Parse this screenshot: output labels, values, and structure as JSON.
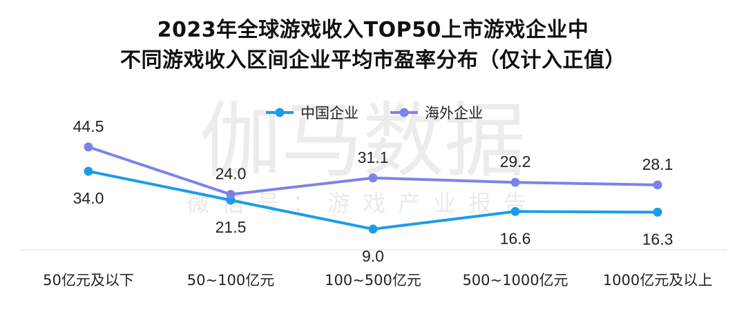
{
  "title_line1": "2023年全球游戏收入TOP50上市游戏企业中",
  "title_line2": "不同游戏收入区间企业平均市盈率分布（仅计入正值）",
  "watermark": {
    "main": "伽马数据",
    "sub": "微信号：游戏产业报告"
  },
  "chart_data": {
    "type": "line",
    "categories": [
      "50亿元及以下",
      "50~100亿元",
      "100~500亿元",
      "500~1000亿元",
      "1000亿元及以上"
    ],
    "series": [
      {
        "name": "中国企业",
        "color": "#1a9de8",
        "values": [
          34.0,
          21.5,
          9.0,
          16.6,
          16.3
        ],
        "label_position": "below"
      },
      {
        "name": "海外企业",
        "color": "#7b83ea",
        "values": [
          44.5,
          24.0,
          31.1,
          29.2,
          28.1
        ],
        "label_position": "above"
      }
    ],
    "legend": "top-center",
    "grid": false
  }
}
